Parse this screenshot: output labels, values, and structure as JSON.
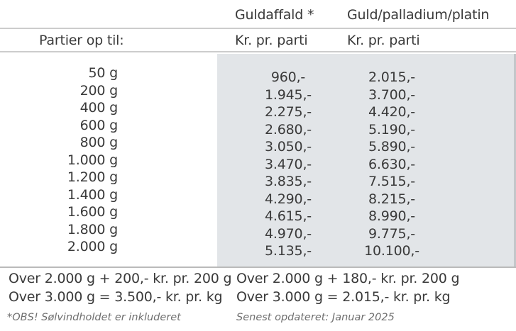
{
  "header": {
    "col2_title": "Guldaffald *",
    "col3_title": "Guld/palladium/platin",
    "col1_label": "Partier op til:",
    "col2_subtitle": "Kr. pr. parti",
    "col3_subtitle": "Kr. pr. parti"
  },
  "table": {
    "weights": [
      "50 g",
      "200 g",
      "400 g",
      "600 g",
      "800 g",
      "1.000 g",
      "1.200 g",
      "1.400 g",
      "1.600 g",
      "1.800 g",
      "2.000 g"
    ],
    "guldaffald_prices": [
      "960,-",
      "1.945,-",
      "2.275,-",
      "2.680,-",
      "3.050,-",
      "3.470,-",
      "3.835,-",
      "4.290,-",
      "4.615,-",
      "4.970,-",
      "5.135,-"
    ],
    "guld_palladium_platin_prices": [
      "2.015,-",
      "3.700,-",
      "4.420,-",
      "5.190,-",
      "5.890,-",
      "6.630,-",
      "7.515,-",
      "8.215,-",
      "8.990,-",
      "9.775,-",
      "10.100,-"
    ]
  },
  "over_rules": {
    "guldaffald": [
      "Over 2.000 g + 200,- kr. pr. 200 g",
      "Over 3.000 g = 3.500,- kr. pr. kg"
    ],
    "guld_palladium_platin": [
      "Over 2.000 g + 180,- kr. pr. 200 g",
      "Over 3.000 g = 2.015,- kr. pr. kg"
    ]
  },
  "footnotes": {
    "left": "*OBS! Sølvindholdet er inkluderet",
    "right": "Senest opdateret: Januar 2025"
  },
  "colors": {
    "panel_bg": "#e2e5e8",
    "panel_edge": "#c3c7ca",
    "text": "#3a3a3a",
    "footnote": "#6f6f6f",
    "line": "rgba(0,0,0,0.20)",
    "line_dark": "rgba(0,0,0,0.27)"
  }
}
